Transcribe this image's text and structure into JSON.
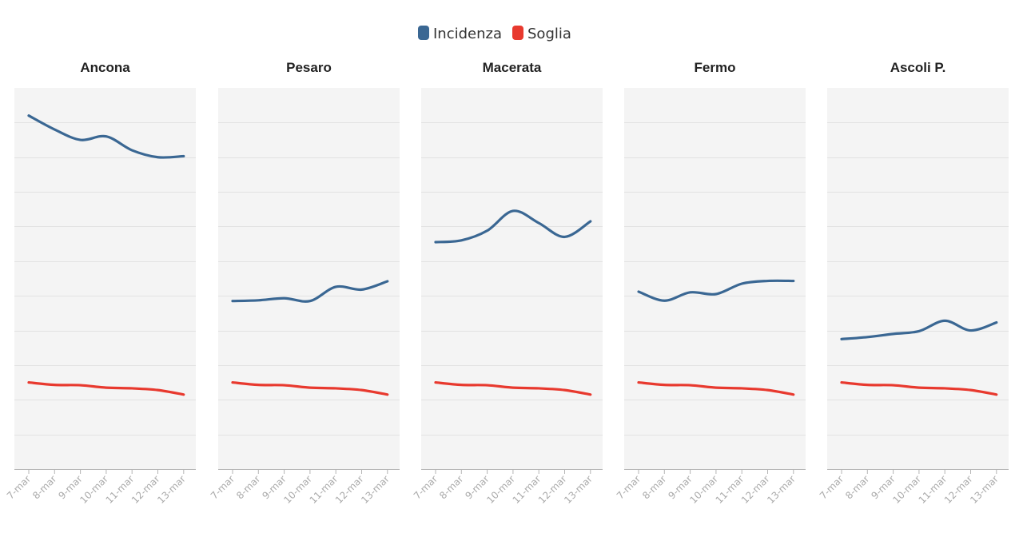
{
  "chart_data": {
    "type": "line",
    "layout": "small-multiples",
    "legend_position": "top-center",
    "grid": true,
    "x": [
      "7-mar",
      "8-mar",
      "9-mar",
      "10-mar",
      "11-mar",
      "12-mar",
      "13-mar"
    ],
    "ylim": [
      0,
      110
    ],
    "legend": [
      {
        "name": "Incidenza",
        "color": "#3a6793"
      },
      {
        "name": "Soglia",
        "color": "#e8392e"
      }
    ],
    "panels": [
      {
        "title": "Ancona",
        "series": [
          {
            "name": "Incidenza",
            "values": [
              102,
              98,
              95,
              96,
              92,
              90,
              90.3
            ]
          },
          {
            "name": "Soglia",
            "values": [
              25,
              24.3,
              24.2,
              23.5,
              23.3,
              22.8,
              21.5
            ]
          }
        ]
      },
      {
        "title": "Pesaro",
        "series": [
          {
            "name": "Incidenza",
            "values": [
              48.5,
              48.7,
              49.3,
              48.5,
              52.6,
              51.8,
              54.2
            ]
          },
          {
            "name": "Soglia",
            "values": [
              25,
              24.3,
              24.2,
              23.5,
              23.3,
              22.8,
              21.5
            ]
          }
        ]
      },
      {
        "title": "Macerata",
        "series": [
          {
            "name": "Incidenza",
            "values": [
              65.5,
              66,
              68.8,
              74.5,
              71,
              67,
              71.5
            ]
          },
          {
            "name": "Soglia",
            "values": [
              25,
              24.3,
              24.2,
              23.5,
              23.3,
              22.8,
              21.5
            ]
          }
        ]
      },
      {
        "title": "Fermo",
        "series": [
          {
            "name": "Incidenza",
            "values": [
              51.2,
              48.6,
              51,
              50.5,
              53.5,
              54.3,
              54.3
            ]
          },
          {
            "name": "Soglia",
            "values": [
              25,
              24.3,
              24.2,
              23.5,
              23.3,
              22.8,
              21.5
            ]
          }
        ]
      },
      {
        "title": "Ascoli P.",
        "series": [
          {
            "name": "Incidenza",
            "values": [
              37.5,
              38.1,
              39,
              39.8,
              42.8,
              40,
              42.3
            ]
          },
          {
            "name": "Soglia",
            "values": [
              25,
              24.3,
              24.2,
              23.5,
              23.3,
              22.8,
              21.5
            ]
          }
        ]
      }
    ]
  }
}
